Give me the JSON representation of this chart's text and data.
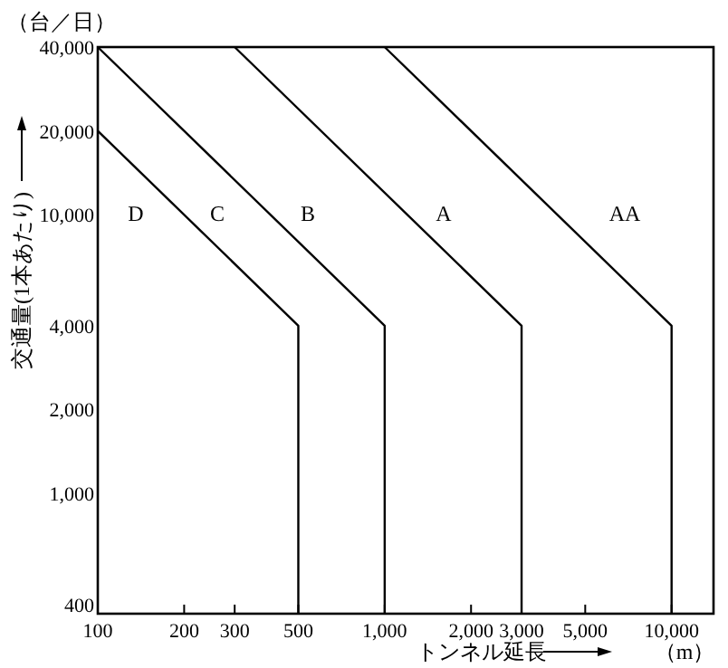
{
  "chart_data": {
    "type": "line",
    "xlabel": "トンネル延長",
    "ylabel": "交通量(1本あたり)",
    "log": "xy",
    "xlim": [
      100,
      14000
    ],
    "ylim": [
      370,
      40000
    ],
    "xticks": [
      100,
      200,
      300,
      500,
      {
        "value": 1000,
        "label": "1,000"
      },
      {
        "value": 2000,
        "label": "2,000"
      },
      {
        "value": 3000,
        "label": "3,000"
      },
      {
        "value": 5000,
        "label": "5,000"
      },
      {
        "value": 10000,
        "label": "10,000"
      }
    ],
    "yticks": [
      400,
      {
        "value": 1000,
        "label": "1,000"
      },
      {
        "value": 2000,
        "label": "2,000"
      },
      {
        "value": 4000,
        "label": "4,000"
      },
      {
        "value": 10000,
        "label": "10,000"
      },
      {
        "value": 20000,
        "label": "20,000"
      },
      {
        "value": 40000,
        "label": "40,000"
      }
    ],
    "series": [
      {
        "color": "#000000",
        "x": [
          100,
          500,
          500
        ],
        "values": [
          20000,
          4000,
          370
        ]
      },
      {
        "color": "#000000",
        "x": [
          100,
          1000,
          1000
        ],
        "values": [
          40000,
          4000,
          370
        ]
      },
      {
        "color": "#000000",
        "x": [
          300,
          3000,
          3000
        ],
        "values": [
          40000,
          4000,
          370
        ]
      },
      {
        "color": "#000000",
        "x": [
          1000,
          10000,
          10000
        ],
        "values": [
          40000,
          4000,
          370
        ]
      }
    ],
    "annotations": [
      "（台／日）",
      "（m）",
      "D",
      "C",
      "B",
      "A",
      "AA"
    ]
  }
}
